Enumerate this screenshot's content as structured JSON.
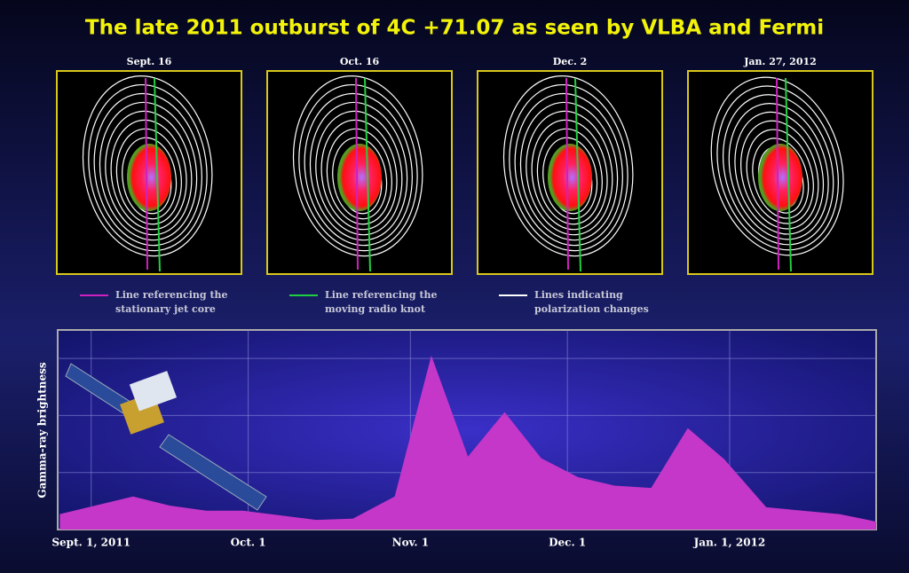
{
  "title": "The late 2011 outburst of 4C +71.07 as seen by VLBA and Fermi",
  "panels": [
    {
      "label": "Sept. 16"
    },
    {
      "label": "Oct. 16"
    },
    {
      "label": "Dec. 2"
    },
    {
      "label": "Jan. 27, 2012"
    }
  ],
  "legend": [
    {
      "lines": [
        "Line referencing the",
        "stationary jet core"
      ],
      "color": "#d020c0"
    },
    {
      "lines": [
        "Line referencing the",
        "moving radio knot"
      ],
      "color": "#20d040"
    },
    {
      "lines": [
        "Lines indicating",
        "polarization changes"
      ],
      "color": "#ffffff"
    }
  ],
  "chart_data": {
    "type": "area",
    "ylabel": "Gamma-ray brightness",
    "color": "#c437c8",
    "x": [
      -6,
      8,
      15,
      22,
      29,
      43,
      50,
      58,
      65,
      72,
      79,
      86,
      93,
      100,
      107,
      114,
      121,
      129,
      143,
      150
    ],
    "values": [
      0.27,
      0.58,
      0.42,
      0.33,
      0.33,
      0.17,
      0.19,
      0.58,
      3.05,
      1.28,
      2.06,
      1.25,
      0.92,
      0.77,
      0.73,
      1.78,
      1.23,
      0.39,
      0.27,
      0.14
    ],
    "xlim": [
      -6.4,
      150
    ],
    "ylim": [
      0,
      3.5
    ],
    "xticks": [
      {
        "value": 0,
        "label": "Sept. 1, 2011"
      },
      {
        "value": 30,
        "label": "Oct. 1"
      },
      {
        "value": 61,
        "label": "Nov. 1"
      },
      {
        "value": 91,
        "label": "Dec. 1"
      },
      {
        "value": 122,
        "label": "Jan. 1, 2012"
      }
    ],
    "yticks": [
      1,
      2,
      3
    ],
    "grid": true
  }
}
